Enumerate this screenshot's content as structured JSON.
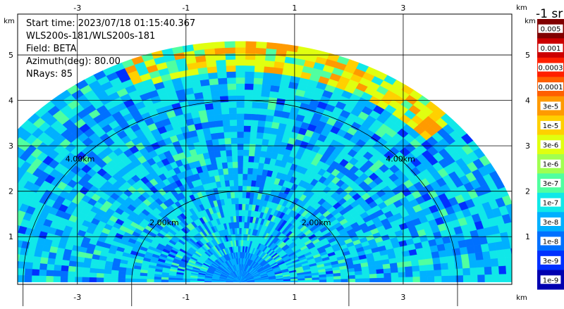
{
  "info": {
    "start_time": "Start time: 2023/07/18 01:15:40.367",
    "station": "WLS200s-181/WLS200s-181",
    "field": "Field: BETA",
    "azimuth": "Azimuth(deg): 80.00",
    "nrays": "NRays: 85"
  },
  "chart_data": {
    "type": "heatmap",
    "title": "",
    "x_unit": "km",
    "y_unit": "km",
    "x_ticks": [
      "-3",
      "-1",
      "1",
      "3"
    ],
    "y_ticks": [
      "1",
      "2",
      "3",
      "4",
      "5"
    ],
    "xlim": [
      -4.1,
      5.0
    ],
    "ylim": [
      -0.05,
      5.9
    ],
    "grid": true,
    "range_rings_km": [
      2,
      4
    ],
    "range_ring_labels": [
      "2.00km",
      "2.00km",
      "4.00km",
      "4.00km"
    ],
    "max_range_km": 5.3,
    "elevation_sector_deg": [
      0,
      180
    ],
    "n_rays": 85,
    "colorbar": {
      "title": "-1 sr",
      "labels": [
        "0.005",
        "0.001",
        "0.0003",
        "0.0001",
        "3e-5",
        "1e-5",
        "3e-6",
        "1e-6",
        "3e-7",
        "1e-7",
        "3e-8",
        "1e-8",
        "3e-9",
        "1e-9"
      ],
      "colors": [
        "#800000",
        "#cc0000",
        "#ff2000",
        "#ff6000",
        "#ff9a00",
        "#ffd000",
        "#e0ff10",
        "#a0ff50",
        "#50ffa0",
        "#10e8e8",
        "#00b0ff",
        "#0070ff",
        "#0030ff",
        "#0000b0"
      ]
    },
    "data_description_values": {
      "near_field_range_km": [
        0,
        0.6
      ],
      "near_field_level": "3e-8",
      "typical_level": "1e-7",
      "high_band_range_km": [
        4.6,
        5.2
      ],
      "high_band_level": "1e-5"
    }
  }
}
